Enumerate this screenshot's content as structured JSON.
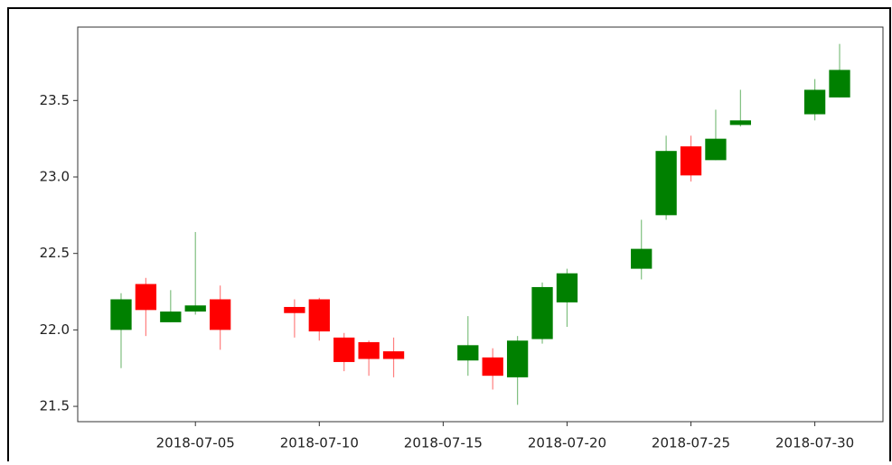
{
  "chart_data": {
    "type": "candlestick",
    "x": [
      "2018-07-02",
      "2018-07-03",
      "2018-07-04",
      "2018-07-05",
      "2018-07-06",
      "2018-07-09",
      "2018-07-10",
      "2018-07-11",
      "2018-07-12",
      "2018-07-13",
      "2018-07-16",
      "2018-07-17",
      "2018-07-18",
      "2018-07-19",
      "2018-07-20",
      "2018-07-23",
      "2018-07-24",
      "2018-07-25",
      "2018-07-26",
      "2018-07-27",
      "2018-07-30",
      "2018-07-31"
    ],
    "open": [
      22.0,
      22.3,
      22.05,
      22.12,
      22.2,
      22.15,
      22.2,
      21.95,
      21.92,
      21.86,
      21.8,
      21.82,
      21.69,
      21.94,
      22.18,
      22.4,
      22.75,
      23.2,
      23.11,
      23.34,
      23.41,
      23.52
    ],
    "high": [
      22.24,
      22.34,
      22.26,
      22.64,
      22.29,
      22.2,
      22.21,
      21.98,
      21.93,
      21.95,
      22.09,
      21.88,
      21.96,
      22.31,
      22.4,
      22.72,
      23.27,
      23.27,
      23.44,
      23.57,
      23.64,
      23.87
    ],
    "low": [
      21.75,
      21.96,
      22.05,
      22.1,
      21.87,
      21.95,
      21.93,
      21.73,
      21.7,
      21.69,
      21.7,
      21.61,
      21.51,
      21.91,
      22.02,
      22.33,
      22.72,
      22.97,
      23.11,
      23.33,
      23.37,
      23.52
    ],
    "close": [
      22.2,
      22.13,
      22.12,
      22.16,
      22.0,
      22.11,
      21.99,
      21.79,
      21.81,
      21.81,
      21.9,
      21.7,
      21.93,
      22.28,
      22.37,
      22.53,
      23.17,
      23.01,
      23.25,
      23.37,
      23.57,
      23.7
    ],
    "up_color": "#008000",
    "down_color": "#ff0000",
    "xlim": [
      "2018-06-30T06:00:00Z",
      "2018-08-01T18:00:00Z"
    ],
    "xticks": [
      "2018-07-05",
      "2018-07-10",
      "2018-07-15",
      "2018-07-20",
      "2018-07-25",
      "2018-07-30"
    ],
    "ylim": [
      21.4,
      23.98
    ],
    "yticks": [
      {
        "value": 21.5,
        "label": "21.5"
      },
      {
        "value": 22.0,
        "label": "22.0"
      },
      {
        "value": 22.5,
        "label": "22.5"
      },
      {
        "value": 23.0,
        "label": "23.0"
      },
      {
        "value": 23.5,
        "label": "23.5"
      }
    ]
  }
}
